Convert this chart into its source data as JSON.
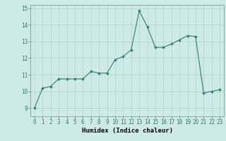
{
  "x": [
    0,
    1,
    2,
    3,
    4,
    5,
    6,
    7,
    8,
    9,
    10,
    11,
    12,
    13,
    14,
    15,
    16,
    17,
    18,
    19,
    20,
    21,
    22,
    23
  ],
  "y": [
    9.0,
    10.2,
    10.3,
    10.75,
    10.75,
    10.75,
    10.75,
    11.2,
    11.1,
    11.1,
    11.9,
    12.1,
    12.5,
    14.85,
    13.9,
    12.65,
    12.65,
    12.85,
    13.1,
    13.35,
    13.3,
    9.9,
    10.0,
    10.1
  ],
  "xlabel": "Humidex (Indice chaleur)",
  "xlim": [
    -0.5,
    23.5
  ],
  "ylim": [
    8.5,
    15.2
  ],
  "yticks": [
    9,
    10,
    11,
    12,
    13,
    14,
    15
  ],
  "xticks": [
    0,
    1,
    2,
    3,
    4,
    5,
    6,
    7,
    8,
    9,
    10,
    11,
    12,
    13,
    14,
    15,
    16,
    17,
    18,
    19,
    20,
    21,
    22,
    23
  ],
  "line_color": "#2e7d6e",
  "marker": "D",
  "marker_size": 1.8,
  "bg_color": "#ceeae7",
  "grid_color": "#aed4d0",
  "tick_fontsize": 5.5,
  "xlabel_fontsize": 6.5,
  "xlabel_fontweight": "bold"
}
